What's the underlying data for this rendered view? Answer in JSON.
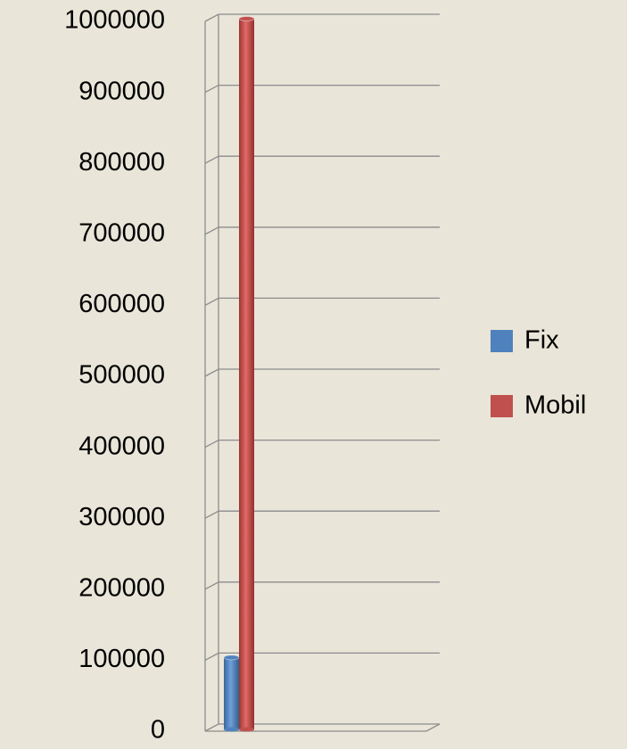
{
  "chart_data": {
    "type": "bar",
    "categories": [
      null
    ],
    "series": [
      {
        "name": "Fix",
        "color": "#4f81bd",
        "values": [
          100000
        ]
      },
      {
        "name": "Mobil",
        "color": "#c0504d",
        "values": [
          1000000
        ]
      }
    ],
    "ylim": [
      0,
      1000000
    ],
    "yticks": [
      0,
      100000,
      200000,
      300000,
      400000,
      500000,
      600000,
      700000,
      800000,
      900000,
      1000000
    ],
    "grid": true,
    "legend": "right"
  }
}
